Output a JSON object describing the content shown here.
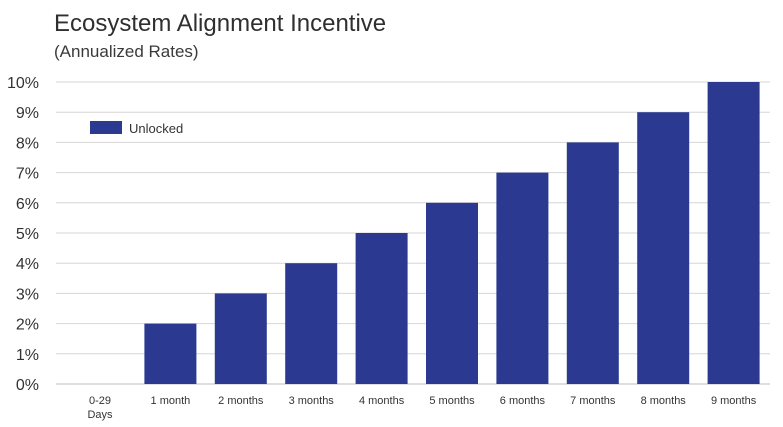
{
  "chart_data": {
    "type": "bar",
    "title": "Ecosystem Alignment Incentive",
    "subtitle": "(Annualized Rates)",
    "categories": [
      "0-29\nDays",
      "1 month",
      "2 months",
      "3 months",
      "4 months",
      "5 months",
      "6 months",
      "7 months",
      "8 months",
      "9 months"
    ],
    "series": [
      {
        "name": "Unlocked",
        "color": "#2b3990",
        "values": [
          0,
          2,
          3,
          4,
          5,
          6,
          7,
          8,
          9,
          10
        ]
      }
    ],
    "ylim": [
      0,
      10
    ],
    "yticks": [
      0,
      1,
      2,
      3,
      4,
      5,
      6,
      7,
      8,
      9,
      10
    ],
    "ytick_labels": [
      "0%",
      "1%",
      "2%",
      "3%",
      "4%",
      "5%",
      "6%",
      "7%",
      "8%",
      "9%",
      "10%"
    ],
    "xlabel": "",
    "ylabel": "",
    "grid": true,
    "legend_position": "top-left"
  }
}
